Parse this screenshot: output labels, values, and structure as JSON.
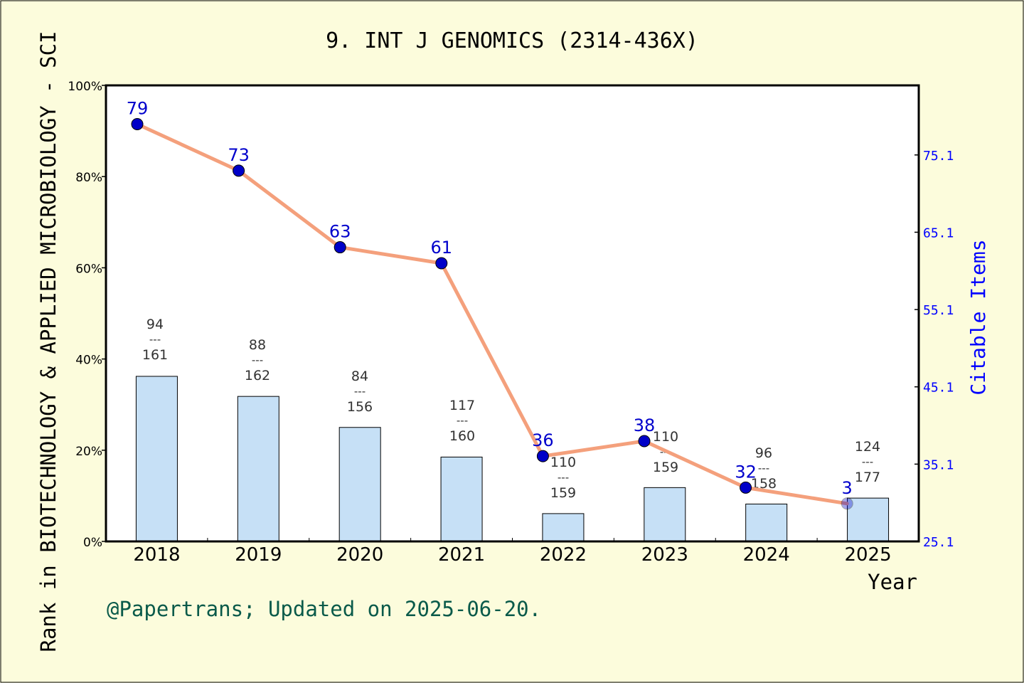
{
  "chart_data": {
    "type": "bar+line",
    "title": "9. INT J GENOMICS (2314-436X)",
    "xlabel": "Year",
    "ylabel_left": "Rank in BIOTECHNOLOGY & APPLIED MICROBIOLOGY - SCI",
    "ylabel_right": "Citable Items",
    "footer": "@Papertrans; Updated on 2025-06-20.",
    "categories": [
      "2018",
      "2019",
      "2020",
      "2021",
      "2022",
      "2023",
      "2024",
      "2025"
    ],
    "left_axis": {
      "ylim": [
        0,
        100
      ],
      "ticks": [
        "0%",
        "20%",
        "40%",
        "60%",
        "80%",
        "100%"
      ]
    },
    "right_axis": {
      "ylim": [
        25.1,
        84.1
      ],
      "ticks": [
        "25.1",
        "35.1",
        "45.1",
        "55.1",
        "65.1",
        "75.1"
      ]
    },
    "bars": {
      "values_percent": [
        36.2,
        31.8,
        25.0,
        18.5,
        6.1,
        11.8,
        8.2,
        9.5
      ],
      "labels": [
        {
          "top": "94",
          "sep": "---",
          "bottom": "161"
        },
        {
          "top": "88",
          "sep": "---",
          "bottom": "162"
        },
        {
          "top": "84",
          "sep": "---",
          "bottom": "156"
        },
        {
          "top": "117",
          "sep": "---",
          "bottom": "160"
        },
        {
          "top": "110",
          "sep": "---",
          "bottom": "159"
        },
        {
          "top": "110",
          "sep": "---",
          "bottom": "159"
        },
        {
          "top": "96",
          "sep": "---",
          "bottom": "158"
        },
        {
          "top": "124",
          "sep": "---",
          "bottom": "177"
        }
      ]
    },
    "line": {
      "values": [
        79,
        73,
        63,
        61,
        36,
        38,
        32,
        3
      ],
      "labels": [
        "79",
        "73",
        "63",
        "61",
        "36",
        "38",
        "32",
        "3"
      ],
      "plotted_percent": [
        91.5,
        81.3,
        64.5,
        61.0,
        18.7,
        22.0,
        11.8,
        8.3
      ]
    },
    "colors": {
      "background": "#fcfcdc",
      "bar_fill": "#c6e0f6",
      "line": "#f4a07c",
      "point": "#0000c8",
      "point_label": "#0000cc",
      "right_axis": "#0000ff",
      "footer": "#0a5a4a"
    }
  }
}
